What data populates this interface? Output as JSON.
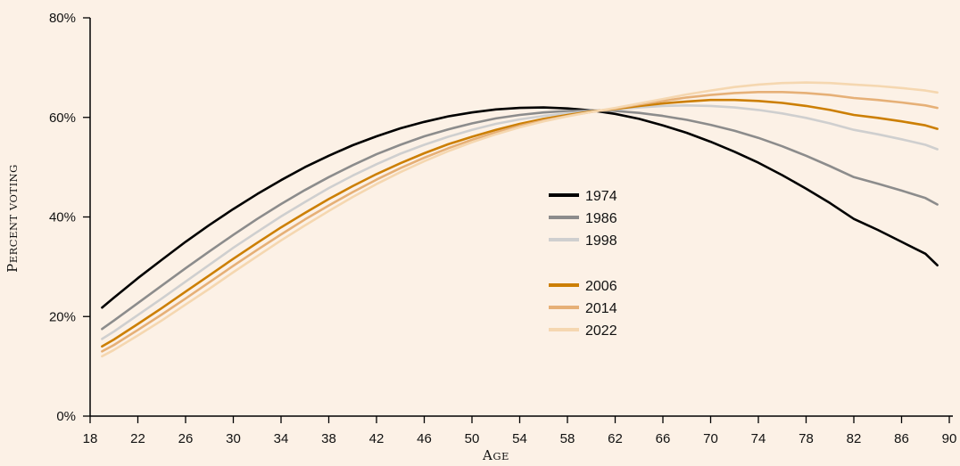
{
  "chart_data": {
    "type": "line",
    "title": "",
    "xlabel": "Age",
    "ylabel": "Percent voting",
    "xlim": [
      18,
      90
    ],
    "ylim": [
      0,
      80
    ],
    "x_ticks": [
      18,
      22,
      26,
      30,
      34,
      38,
      42,
      46,
      50,
      54,
      58,
      62,
      66,
      70,
      74,
      78,
      82,
      86,
      90
    ],
    "y_ticks": [
      0,
      20,
      40,
      60,
      80
    ],
    "y_tick_labels": [
      "0%",
      "20%",
      "40%",
      "60%",
      "80%"
    ],
    "grid": false,
    "legend_position": "center",
    "x": [
      19,
      20,
      22,
      24,
      26,
      28,
      30,
      32,
      34,
      36,
      38,
      40,
      42,
      44,
      46,
      48,
      50,
      52,
      54,
      56,
      58,
      60,
      62,
      64,
      66,
      68,
      70,
      72,
      74,
      76,
      78,
      80,
      82,
      84,
      86,
      88,
      89
    ],
    "series": [
      {
        "name": "1974",
        "color": "#000000",
        "values": [
          21.8,
          23.8,
          27.7,
          31.4,
          35.0,
          38.4,
          41.6,
          44.6,
          47.4,
          50.0,
          52.3,
          54.4,
          56.2,
          57.8,
          59.1,
          60.2,
          61.0,
          61.6,
          61.9,
          62.0,
          61.8,
          61.4,
          60.7,
          59.7,
          58.4,
          56.9,
          55.1,
          53.1,
          50.9,
          48.4,
          45.7,
          42.8,
          39.6,
          37.4,
          35.0,
          32.6,
          30.3
        ]
      },
      {
        "name": "1986",
        "color": "#8c8c8c",
        "values": [
          17.5,
          19.2,
          22.7,
          26.2,
          29.7,
          33.1,
          36.4,
          39.6,
          42.6,
          45.4,
          48.0,
          50.4,
          52.6,
          54.5,
          56.2,
          57.6,
          58.8,
          59.8,
          60.5,
          61.0,
          61.3,
          61.4,
          61.3,
          60.9,
          60.3,
          59.5,
          58.5,
          57.3,
          55.9,
          54.2,
          52.3,
          50.2,
          48.0,
          46.7,
          45.3,
          43.8,
          42.5
        ]
      },
      {
        "name": "1998",
        "color": "#cfcfcf",
        "values": [
          15.5,
          17.0,
          20.3,
          23.6,
          27.0,
          30.4,
          33.8,
          37.0,
          40.1,
          43.0,
          45.8,
          48.3,
          50.6,
          52.7,
          54.5,
          56.1,
          57.5,
          58.7,
          59.6,
          60.3,
          60.8,
          61.2,
          61.6,
          62.0,
          62.3,
          62.4,
          62.3,
          62.0,
          61.5,
          60.8,
          59.9,
          58.8,
          57.5,
          56.6,
          55.6,
          54.5,
          53.6
        ]
      },
      {
        "name": "2006",
        "color": "#cc7f04",
        "values": [
          14.0,
          15.4,
          18.5,
          21.7,
          25.0,
          28.3,
          31.6,
          34.8,
          37.9,
          40.8,
          43.6,
          46.2,
          48.6,
          50.8,
          52.8,
          54.6,
          56.1,
          57.5,
          58.7,
          59.7,
          60.5,
          61.2,
          61.7,
          62.3,
          62.8,
          63.2,
          63.5,
          63.5,
          63.3,
          62.9,
          62.3,
          61.5,
          60.5,
          59.9,
          59.2,
          58.4,
          57.7
        ]
      },
      {
        "name": "2014",
        "color": "#e6b077",
        "values": [
          13.0,
          14.3,
          17.3,
          20.4,
          23.6,
          26.9,
          30.2,
          33.4,
          36.5,
          39.5,
          42.3,
          45.0,
          47.5,
          49.8,
          51.9,
          53.8,
          55.5,
          57.0,
          58.3,
          59.4,
          60.3,
          61.1,
          61.8,
          62.6,
          63.3,
          64.0,
          64.5,
          64.9,
          65.1,
          65.1,
          64.9,
          64.5,
          63.9,
          63.5,
          63.0,
          62.4,
          61.9
        ]
      },
      {
        "name": "2022",
        "color": "#f5d7b0",
        "values": [
          12.0,
          13.3,
          16.2,
          19.2,
          22.4,
          25.6,
          28.9,
          32.1,
          35.3,
          38.3,
          41.2,
          44.0,
          46.6,
          49.0,
          51.2,
          53.2,
          55.0,
          56.6,
          58.0,
          59.2,
          60.2,
          61.1,
          61.9,
          62.8,
          63.7,
          64.6,
          65.4,
          66.1,
          66.6,
          66.9,
          67.0,
          66.9,
          66.6,
          66.3,
          65.9,
          65.4,
          65.0
        ]
      }
    ]
  }
}
